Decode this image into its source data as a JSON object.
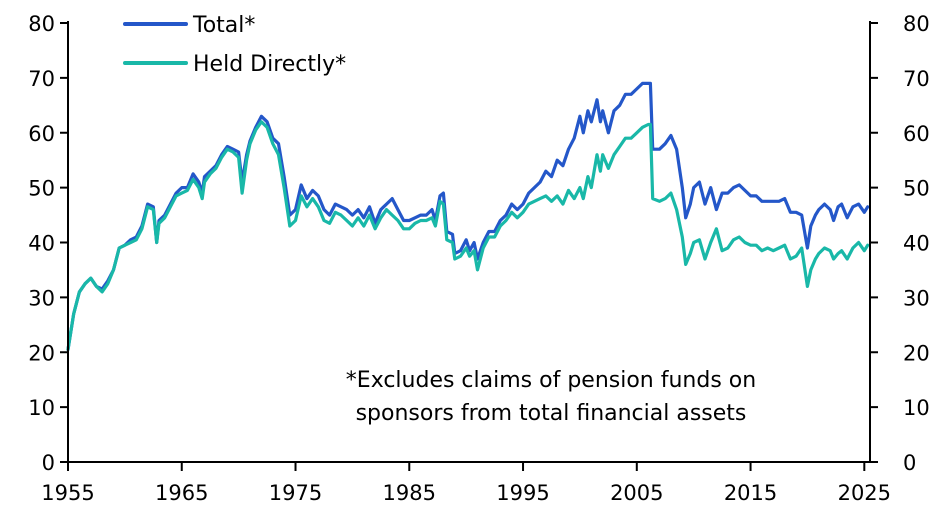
{
  "chart_data": {
    "type": "line",
    "title": "",
    "xlabel": "",
    "ylabel": "",
    "xlim": [
      1955,
      2025.5
    ],
    "ylim": [
      0,
      80
    ],
    "x_ticks": [
      1955,
      1965,
      1975,
      1985,
      1995,
      2005,
      2015,
      2025
    ],
    "y_ticks": [
      0,
      10,
      20,
      30,
      40,
      50,
      60,
      70,
      80
    ],
    "y_axis": "both",
    "grid": false,
    "legend_position": "top-left",
    "annotation": {
      "line1": "*Excludes claims of pension funds on",
      "line2": "sponsors from total financial assets"
    },
    "series": [
      {
        "name": "Total*",
        "color": "#2457c9",
        "points": [
          [
            1955.0,
            20.5
          ],
          [
            1955.5,
            27
          ],
          [
            1956,
            31
          ],
          [
            1956.5,
            32.5
          ],
          [
            1957,
            33.5
          ],
          [
            1957.5,
            32
          ],
          [
            1958,
            31.5
          ],
          [
            1958.5,
            33
          ],
          [
            1959,
            35
          ],
          [
            1959.5,
            39
          ],
          [
            1960,
            39.5
          ],
          [
            1960.5,
            40.5
          ],
          [
            1961,
            41
          ],
          [
            1961.5,
            43
          ],
          [
            1962,
            47
          ],
          [
            1962.5,
            46.5
          ],
          [
            1962.8,
            40
          ],
          [
            1963,
            44
          ],
          [
            1963.5,
            45
          ],
          [
            1964,
            47
          ],
          [
            1964.5,
            49
          ],
          [
            1965,
            50
          ],
          [
            1965.5,
            50
          ],
          [
            1966,
            52.5
          ],
          [
            1966.5,
            51
          ],
          [
            1966.8,
            49
          ],
          [
            1967,
            52
          ],
          [
            1967.5,
            53
          ],
          [
            1968,
            54
          ],
          [
            1968.5,
            56
          ],
          [
            1969,
            57.5
          ],
          [
            1969.5,
            57
          ],
          [
            1970,
            56.5
          ],
          [
            1970.3,
            51
          ],
          [
            1970.7,
            56
          ],
          [
            1971,
            58.5
          ],
          [
            1971.5,
            61
          ],
          [
            1972,
            63
          ],
          [
            1972.5,
            62
          ],
          [
            1973,
            59
          ],
          [
            1973.5,
            58
          ],
          [
            1974,
            52
          ],
          [
            1974.5,
            45
          ],
          [
            1975,
            46
          ],
          [
            1975.5,
            50.5
          ],
          [
            1976,
            48
          ],
          [
            1976.5,
            49.5
          ],
          [
            1977,
            48.5
          ],
          [
            1977.5,
            46
          ],
          [
            1978,
            45
          ],
          [
            1978.5,
            47
          ],
          [
            1979,
            46.5
          ],
          [
            1979.5,
            46
          ],
          [
            1980,
            45
          ],
          [
            1980.5,
            46
          ],
          [
            1981,
            44.5
          ],
          [
            1981.5,
            46.5
          ],
          [
            1982,
            43.5
          ],
          [
            1982.5,
            46
          ],
          [
            1983,
            47
          ],
          [
            1983.5,
            48
          ],
          [
            1984,
            46
          ],
          [
            1984.5,
            44
          ],
          [
            1985,
            44
          ],
          [
            1985.5,
            44.5
          ],
          [
            1986,
            45
          ],
          [
            1986.5,
            45
          ],
          [
            1987,
            46
          ],
          [
            1987.3,
            44
          ],
          [
            1987.7,
            48.5
          ],
          [
            1988,
            49
          ],
          [
            1988.3,
            42
          ],
          [
            1988.8,
            41.5
          ],
          [
            1989,
            38
          ],
          [
            1989.5,
            38.5
          ],
          [
            1990,
            40.5
          ],
          [
            1990.3,
            38.5
          ],
          [
            1990.7,
            40
          ],
          [
            1991,
            37
          ],
          [
            1991.5,
            40
          ],
          [
            1992,
            42
          ],
          [
            1992.5,
            42
          ],
          [
            1993,
            44
          ],
          [
            1993.5,
            45
          ],
          [
            1994,
            47
          ],
          [
            1994.5,
            46
          ],
          [
            1995,
            47
          ],
          [
            1995.5,
            49
          ],
          [
            1996,
            50
          ],
          [
            1996.5,
            51
          ],
          [
            1997,
            53
          ],
          [
            1997.5,
            52
          ],
          [
            1998,
            55
          ],
          [
            1998.5,
            54
          ],
          [
            1999,
            57
          ],
          [
            1999.5,
            59
          ],
          [
            2000,
            63
          ],
          [
            2000.3,
            60
          ],
          [
            2000.7,
            64
          ],
          [
            2001,
            62
          ],
          [
            2001.5,
            66
          ],
          [
            2001.8,
            62
          ],
          [
            2002,
            64
          ],
          [
            2002.5,
            60
          ],
          [
            2003,
            64
          ],
          [
            2003.5,
            65
          ],
          [
            2004,
            67
          ],
          [
            2004.5,
            67
          ],
          [
            2005,
            68
          ],
          [
            2005.5,
            69
          ],
          [
            2006,
            69
          ],
          [
            2006.2,
            69
          ],
          [
            2006.4,
            57
          ],
          [
            2007,
            57
          ],
          [
            2007.5,
            58
          ],
          [
            2008,
            59.5
          ],
          [
            2008.5,
            57
          ],
          [
            2009,
            50
          ],
          [
            2009.3,
            44.5
          ],
          [
            2009.7,
            47
          ],
          [
            2010,
            50
          ],
          [
            2010.5,
            51
          ],
          [
            2011,
            47
          ],
          [
            2011.5,
            50
          ],
          [
            2012,
            46
          ],
          [
            2012.5,
            49
          ],
          [
            2013,
            49
          ],
          [
            2013.5,
            50
          ],
          [
            2014,
            50.5
          ],
          [
            2014.5,
            49.5
          ],
          [
            2015,
            48.5
          ],
          [
            2015.5,
            48.5
          ],
          [
            2016,
            47.5
          ],
          [
            2016.5,
            47.5
          ],
          [
            2017,
            47.5
          ],
          [
            2017.5,
            47.5
          ],
          [
            2018,
            48
          ],
          [
            2018.5,
            45.5
          ],
          [
            2019,
            45.5
          ],
          [
            2019.5,
            45
          ],
          [
            2020,
            39
          ],
          [
            2020.3,
            43
          ],
          [
            2020.7,
            45
          ],
          [
            2021,
            46
          ],
          [
            2021.5,
            47
          ],
          [
            2022,
            46
          ],
          [
            2022.3,
            44
          ],
          [
            2022.7,
            46.5
          ],
          [
            2023,
            47
          ],
          [
            2023.5,
            44.5
          ],
          [
            2024,
            46.5
          ],
          [
            2024.5,
            47
          ],
          [
            2025,
            45.5
          ],
          [
            2025.3,
            46.5
          ]
        ]
      },
      {
        "name": "Held Directly*",
        "color": "#19b8a8",
        "points": [
          [
            1955.0,
            20.5
          ],
          [
            1955.5,
            27
          ],
          [
            1956,
            31
          ],
          [
            1956.5,
            32.5
          ],
          [
            1957,
            33.5
          ],
          [
            1957.5,
            32
          ],
          [
            1958,
            31
          ],
          [
            1958.5,
            32.5
          ],
          [
            1959,
            35
          ],
          [
            1959.5,
            39
          ],
          [
            1960,
            39.5
          ],
          [
            1960.5,
            40
          ],
          [
            1961,
            40.5
          ],
          [
            1961.5,
            42.5
          ],
          [
            1962,
            46.5
          ],
          [
            1962.5,
            46
          ],
          [
            1962.8,
            40
          ],
          [
            1963,
            43.5
          ],
          [
            1963.5,
            44.5
          ],
          [
            1964,
            46.5
          ],
          [
            1964.5,
            48.5
          ],
          [
            1965,
            49
          ],
          [
            1965.5,
            49.5
          ],
          [
            1966,
            51.5
          ],
          [
            1966.5,
            50
          ],
          [
            1966.8,
            48
          ],
          [
            1967,
            51
          ],
          [
            1967.5,
            52.5
          ],
          [
            1968,
            53.5
          ],
          [
            1968.5,
            55.5
          ],
          [
            1969,
            57
          ],
          [
            1969.5,
            56.5
          ],
          [
            1970,
            55.5
          ],
          [
            1970.3,
            49
          ],
          [
            1970.7,
            55
          ],
          [
            1971,
            58
          ],
          [
            1971.5,
            60.5
          ],
          [
            1972,
            62
          ],
          [
            1972.5,
            61
          ],
          [
            1973,
            58
          ],
          [
            1973.5,
            56
          ],
          [
            1974,
            50
          ],
          [
            1974.5,
            43
          ],
          [
            1975,
            44
          ],
          [
            1975.5,
            48.5
          ],
          [
            1976,
            46.5
          ],
          [
            1976.5,
            48
          ],
          [
            1977,
            46.5
          ],
          [
            1977.5,
            44
          ],
          [
            1978,
            43.5
          ],
          [
            1978.5,
            45.5
          ],
          [
            1979,
            45
          ],
          [
            1979.5,
            44
          ],
          [
            1980,
            43
          ],
          [
            1980.5,
            44.5
          ],
          [
            1981,
            43
          ],
          [
            1981.5,
            45
          ],
          [
            1982,
            42.5
          ],
          [
            1982.5,
            44.5
          ],
          [
            1983,
            46
          ],
          [
            1983.5,
            45
          ],
          [
            1984,
            44
          ],
          [
            1984.5,
            42.5
          ],
          [
            1985,
            42.5
          ],
          [
            1985.5,
            43.5
          ],
          [
            1986,
            44
          ],
          [
            1986.5,
            44
          ],
          [
            1987,
            44.5
          ],
          [
            1987.3,
            43
          ],
          [
            1987.7,
            47.5
          ],
          [
            1988,
            47
          ],
          [
            1988.3,
            40.5
          ],
          [
            1988.8,
            40
          ],
          [
            1989,
            37
          ],
          [
            1989.5,
            37.5
          ],
          [
            1990,
            39
          ],
          [
            1990.3,
            37.5
          ],
          [
            1990.7,
            38.5
          ],
          [
            1991,
            35
          ],
          [
            1991.5,
            39
          ],
          [
            1992,
            41
          ],
          [
            1992.5,
            41
          ],
          [
            1993,
            43
          ],
          [
            1993.5,
            44
          ],
          [
            1994,
            45.5
          ],
          [
            1994.5,
            44.5
          ],
          [
            1995,
            45.5
          ],
          [
            1995.5,
            47
          ],
          [
            1996,
            47.5
          ],
          [
            1996.5,
            48
          ],
          [
            1997,
            48.5
          ],
          [
            1997.5,
            47.5
          ],
          [
            1998,
            48.5
          ],
          [
            1998.5,
            47
          ],
          [
            1999,
            49.5
          ],
          [
            1999.5,
            48
          ],
          [
            2000,
            50
          ],
          [
            2000.3,
            48
          ],
          [
            2000.7,
            52
          ],
          [
            2001,
            50
          ],
          [
            2001.5,
            56
          ],
          [
            2001.8,
            53
          ],
          [
            2002,
            56
          ],
          [
            2002.5,
            53.5
          ],
          [
            2003,
            56
          ],
          [
            2003.5,
            57.5
          ],
          [
            2004,
            59
          ],
          [
            2004.5,
            59
          ],
          [
            2005,
            60
          ],
          [
            2005.5,
            61
          ],
          [
            2006,
            61.5
          ],
          [
            2006.2,
            61.5
          ],
          [
            2006.4,
            48
          ],
          [
            2007,
            47.5
          ],
          [
            2007.5,
            48
          ],
          [
            2008,
            49
          ],
          [
            2008.5,
            46
          ],
          [
            2009,
            41
          ],
          [
            2009.3,
            36
          ],
          [
            2009.7,
            38
          ],
          [
            2010,
            40
          ],
          [
            2010.5,
            40.5
          ],
          [
            2011,
            37
          ],
          [
            2011.5,
            40
          ],
          [
            2012,
            42.5
          ],
          [
            2012.5,
            38.5
          ],
          [
            2013,
            39
          ],
          [
            2013.5,
            40.5
          ],
          [
            2014,
            41
          ],
          [
            2014.5,
            40
          ],
          [
            2015,
            39.5
          ],
          [
            2015.5,
            39.5
          ],
          [
            2016,
            38.5
          ],
          [
            2016.5,
            39
          ],
          [
            2017,
            38.5
          ],
          [
            2017.5,
            39
          ],
          [
            2018,
            39.5
          ],
          [
            2018.5,
            37
          ],
          [
            2019,
            37.5
          ],
          [
            2019.5,
            39
          ],
          [
            2020,
            32
          ],
          [
            2020.3,
            35
          ],
          [
            2020.7,
            37
          ],
          [
            2021,
            38
          ],
          [
            2021.5,
            39
          ],
          [
            2022,
            38.5
          ],
          [
            2022.3,
            37
          ],
          [
            2022.7,
            38
          ],
          [
            2023,
            38.5
          ],
          [
            2023.5,
            37
          ],
          [
            2024,
            39
          ],
          [
            2024.5,
            40
          ],
          [
            2025,
            38.5
          ],
          [
            2025.3,
            39.5
          ]
        ]
      }
    ]
  }
}
